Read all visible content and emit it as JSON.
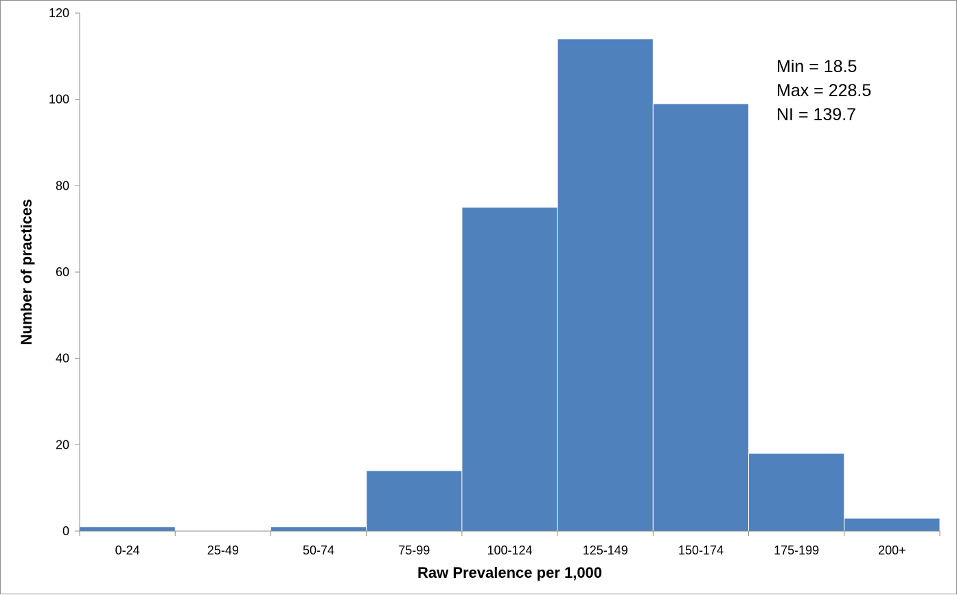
{
  "chart_data": {
    "type": "bar",
    "categories": [
      "0-24",
      "25-49",
      "50-74",
      "75-99",
      "100-124",
      "125-149",
      "150-174",
      "175-199",
      "200+"
    ],
    "values": [
      1,
      0,
      1,
      14,
      75,
      114,
      99,
      18,
      3
    ],
    "xlabel": "Raw Prevalence per 1,000",
    "ylabel": "Number of practices",
    "ylim": [
      0,
      120
    ],
    "yticks": [
      0,
      20,
      40,
      60,
      80,
      100,
      120
    ],
    "grid": false,
    "legend": "none",
    "bar_color": "#4f81bd",
    "annotations": [
      "Min = 18.5",
      "Max = 228.5",
      "NI = 139.7"
    ]
  }
}
